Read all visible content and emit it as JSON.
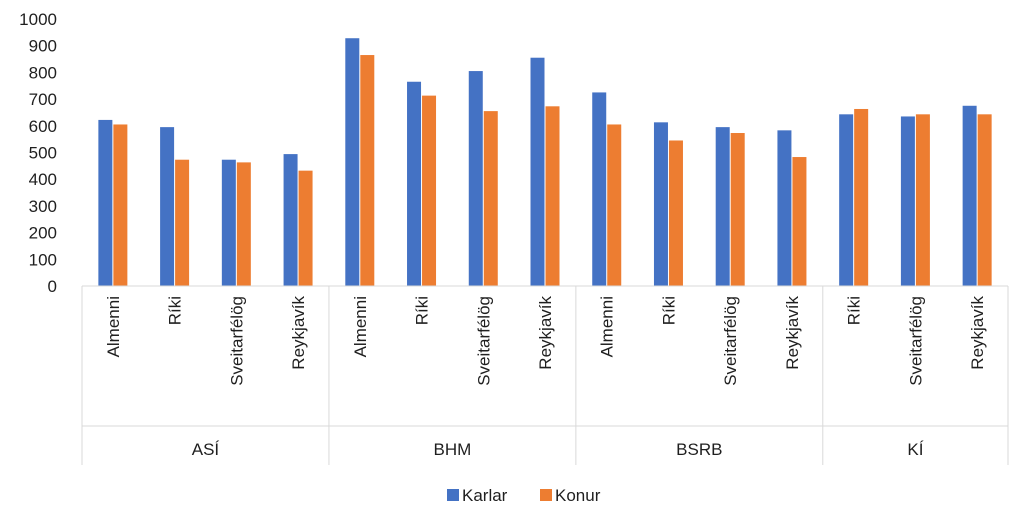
{
  "chart_data": {
    "type": "bar",
    "title": "",
    "xlabel": "",
    "ylabel": "",
    "ylim": [
      0,
      1000
    ],
    "yticks": [
      0,
      100,
      200,
      300,
      400,
      500,
      600,
      700,
      800,
      900,
      1000
    ],
    "grid": false,
    "legend_position": "bottom",
    "groups": [
      {
        "name": "ASÍ",
        "categories": [
          "Almenni",
          "Ríki",
          "Sveitarfélög",
          "Reykjavík"
        ]
      },
      {
        "name": "BHM",
        "categories": [
          "Almenni",
          "Ríki",
          "Sveitarfélög",
          "Reykjavík"
        ]
      },
      {
        "name": "BSRB",
        "categories": [
          "Almenni",
          "Ríki",
          "Sveitarfélög",
          "Reykjavík"
        ]
      },
      {
        "name": "KÍ",
        "categories": [
          "Ríki",
          "Sveitarfélög",
          "Reykjavík"
        ]
      }
    ],
    "series": [
      {
        "name": "Karlar",
        "color": "#4472C4",
        "values": [
          622,
          595,
          473,
          494,
          928,
          765,
          805,
          855,
          725,
          613,
          595,
          583,
          643,
          635,
          675
        ]
      },
      {
        "name": "Konur",
        "color": "#ED7D31",
        "values": [
          605,
          473,
          463,
          432,
          865,
          713,
          655,
          673,
          605,
          545,
          573,
          483,
          663,
          643,
          643
        ]
      }
    ]
  }
}
